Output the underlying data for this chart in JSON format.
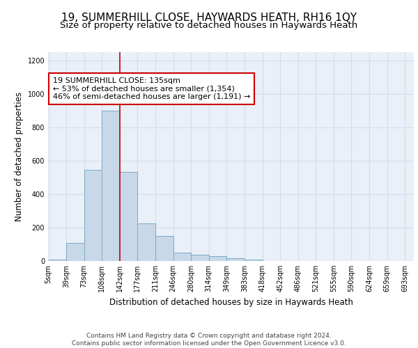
{
  "title1": "19, SUMMERHILL CLOSE, HAYWARDS HEATH, RH16 1QY",
  "title2": "Size of property relative to detached houses in Haywards Heath",
  "xlabel": "Distribution of detached houses by size in Haywards Heath",
  "ylabel": "Number of detached properties",
  "bin_labels": [
    "5sqm",
    "39sqm",
    "73sqm",
    "108sqm",
    "142sqm",
    "177sqm",
    "211sqm",
    "246sqm",
    "280sqm",
    "314sqm",
    "349sqm",
    "383sqm",
    "418sqm",
    "452sqm",
    "486sqm",
    "521sqm",
    "555sqm",
    "590sqm",
    "624sqm",
    "659sqm",
    "693sqm"
  ],
  "bar_heights": [
    10,
    110,
    545,
    900,
    535,
    225,
    148,
    52,
    38,
    28,
    18,
    10,
    0,
    0,
    0,
    0,
    0,
    0,
    0,
    0
  ],
  "bar_color": "#c8d8e8",
  "bar_edgecolor": "#7aaac8",
  "property_bin": 4,
  "vline_color": "#cc0000",
  "annotation_text": "19 SUMMERHILL CLOSE: 135sqm\n← 53% of detached houses are smaller (1,354)\n46% of semi-detached houses are larger (1,191) →",
  "annotation_box_edgecolor": "#cc0000",
  "annotation_box_facecolor": "#ffffff",
  "ylim": [
    0,
    1250
  ],
  "yticks": [
    0,
    200,
    400,
    600,
    800,
    1000,
    1200
  ],
  "grid_color": "#d4dde8",
  "background_color": "#eaf0f8",
  "footer_text": "Contains HM Land Registry data © Crown copyright and database right 2024.\nContains public sector information licensed under the Open Government Licence v3.0.",
  "title1_fontsize": 11,
  "title2_fontsize": 9.5,
  "xlabel_fontsize": 8.5,
  "ylabel_fontsize": 8.5,
  "tick_fontsize": 7,
  "annotation_fontsize": 8,
  "footer_fontsize": 6.5
}
